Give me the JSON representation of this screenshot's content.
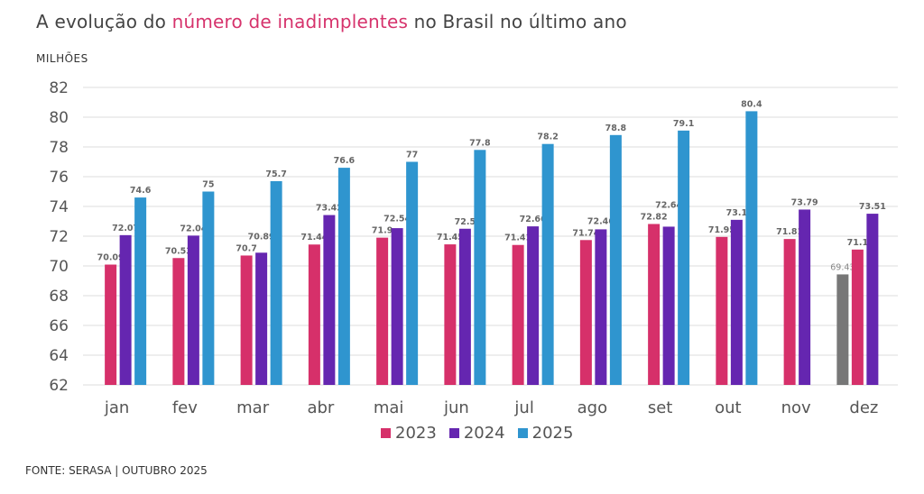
{
  "title": {
    "before": "A evolução do ",
    "highlight": "número de inadimplentes",
    "after": " no Brasil no último ano"
  },
  "source": "FONTE: SERASA | OUTUBRO 2025",
  "chart_data": {
    "type": "bar",
    "ylabel": "MILHÕES",
    "ylim": [
      62,
      82
    ],
    "yticks": [
      62,
      64,
      66,
      68,
      70,
      72,
      74,
      76,
      78,
      80,
      82
    ],
    "grid": true,
    "legend": "bottom",
    "categories": [
      "jan",
      "fev",
      "mar",
      "abr",
      "mai",
      "jun",
      "jul",
      "ago",
      "set",
      "out",
      "nov",
      "dez"
    ],
    "series": [
      {
        "name": "",
        "color": "#777777",
        "values": [
          null,
          null,
          null,
          null,
          null,
          null,
          null,
          null,
          null,
          null,
          null,
          69.43
        ]
      },
      {
        "name": "2023",
        "color": "#d6306a",
        "values": [
          70.09,
          70.53,
          70.7,
          71.44,
          71.9,
          71.45,
          71.41,
          71.74,
          72.82,
          71.95,
          71.81,
          71.1
        ]
      },
      {
        "name": "2024",
        "color": "#6526b0",
        "values": [
          72.07,
          72.04,
          70.89,
          73.42,
          72.54,
          72.5,
          72.66,
          72.46,
          72.64,
          73.1,
          73.79,
          73.51
        ]
      },
      {
        "name": "2025",
        "color": "#2f95cf",
        "values": [
          74.6,
          75,
          75.7,
          76.6,
          77,
          77.8,
          78.2,
          78.8,
          79.1,
          80.4,
          null,
          null
        ]
      }
    ],
    "data_labels": true
  }
}
